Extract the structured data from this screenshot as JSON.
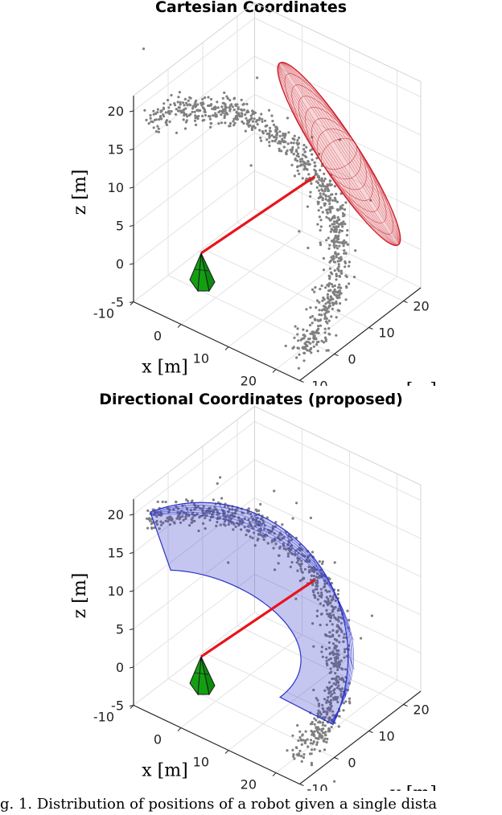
{
  "chart_data": [
    {
      "type": "scatter",
      "title": "Cartesian Coordinates",
      "xlabel": "x [m]",
      "ylabel": "y [m]",
      "zlabel": "z [m]",
      "xticks": [
        "-10",
        "0",
        "10",
        "20"
      ],
      "yticks": [
        "-10",
        "0",
        "10",
        "20"
      ],
      "zticks": [
        "-5",
        "0",
        "5",
        "10",
        "15",
        "20"
      ],
      "xlim": [
        -10,
        25
      ],
      "ylim": [
        -10,
        25
      ],
      "zlim": [
        -5,
        22
      ],
      "grid": true,
      "sensor_position": [
        0,
        0,
        0
      ],
      "target_position": [
        12,
        12,
        9
      ],
      "uncertainty_shape": "ellipsoid",
      "shape_color": "#cc1f2a",
      "point_color": "#808080",
      "sensor_color": "#12a012",
      "line_color": "#e8151b",
      "n_points": 900
    },
    {
      "type": "scatter",
      "title": "Directional Coordinates (proposed)",
      "xlabel": "x [m]",
      "ylabel": "y [m]",
      "zlabel": "z [m]",
      "xticks": [
        "-10",
        "0",
        "10",
        "20"
      ],
      "yticks": [
        "-10",
        "0",
        "10",
        "20"
      ],
      "zticks": [
        "-5",
        "0",
        "5",
        "10",
        "15",
        "20"
      ],
      "xlim": [
        -10,
        25
      ],
      "ylim": [
        -10,
        25
      ],
      "zlim": [
        -5,
        22
      ],
      "grid": true,
      "sensor_position": [
        0,
        0,
        0
      ],
      "target_position": [
        12,
        12,
        9
      ],
      "uncertainty_shape": "spherical shell",
      "shape_color": "#2a32c8",
      "point_color": "#808080",
      "sensor_color": "#12a012",
      "line_color": "#e8151b",
      "n_points": 900
    }
  ],
  "caption": "g. 1. Distribution of positions of a robot given a single dista"
}
